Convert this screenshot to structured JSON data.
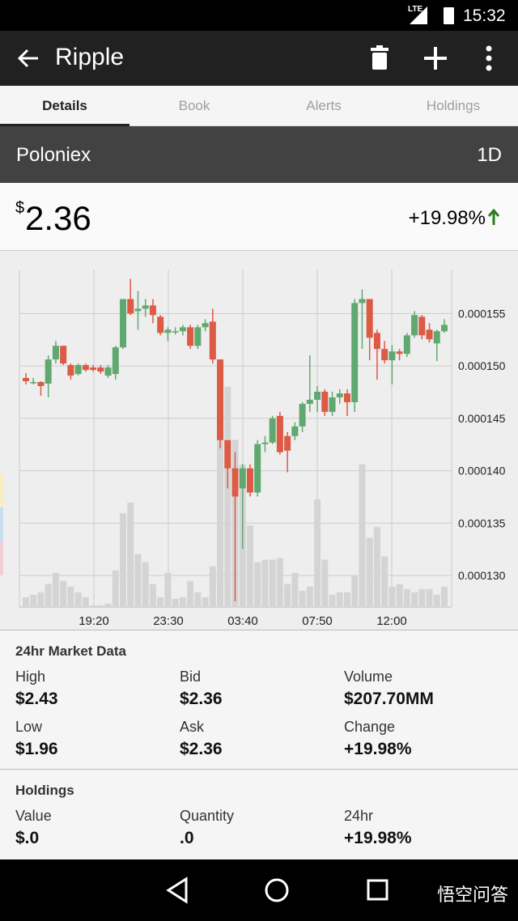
{
  "status_bar": {
    "network": "LTE",
    "time": "15:32"
  },
  "toolbar": {
    "title": "Ripple"
  },
  "tabs": [
    "Details",
    "Book",
    "Alerts",
    "Holdings"
  ],
  "exchange": {
    "name": "Poloniex",
    "interval": "1D"
  },
  "price": {
    "currency": "$",
    "value": "2.36",
    "change": "+19.98%"
  },
  "chart_data": {
    "type": "candlestick",
    "x_labels": [
      "19:20",
      "23:30",
      "03:40",
      "07:50",
      "12:00"
    ],
    "open": [
      0.00014885,
      0.00014846,
      0.00014846,
      0.00014831,
      0.00015062,
      0.00015192,
      0.00015008,
      0.00014923,
      0.00015008,
      0.00014985,
      0.00014985,
      0.00014908,
      0.00014923,
      0.00015177,
      0.00015638,
      0.00015523,
      0.00015546,
      0.00015577,
      0.00015469,
      0.00015315,
      0.00015331,
      0.00015331,
      0.00015369,
      0.00015192,
      0.00015369,
      0.00015423,
      0.00015062,
      0.00014292,
      0.00014023,
      0.00013831,
      0.00014023,
      0.00013792,
      0.00014254,
      0.00014269,
      0.00014523,
      0.00014331,
      0.00014331,
      0.00014423,
      0.00014638,
      0.00014677,
      0.00014754,
      0.00014562,
      0.000147,
      0.00014738,
      0.00014654,
      0.000156,
      0.00015638,
      0.00015315,
      0.00015162,
      0.00015054,
      0.00015138,
      0.00015115,
      0.00015292,
      0.00015469,
      0.00015346,
      0.00015215,
      0.00015331
    ],
    "high": [
      0.00014931,
      0.00014885,
      0.00014854,
      0.000151,
      0.00015238,
      0.00015192,
      0.00015023,
      0.00015023,
      0.00015023,
      0.00015008,
      0.00015008,
      0.00015008,
      0.00015192,
      0.00015638,
      0.00015831,
      0.00015715,
      0.00015638,
      0.00015638,
      0.00015485,
      0.00015369,
      0.00015369,
      0.00015392,
      0.00015392,
      0.00015392,
      0.00015446,
      0.00015546,
      0.00015062,
      0.00014292,
      0.00014177,
      0.00014062,
      0.00014062,
      0.00014292,
      0.00014331,
      0.00014523,
      0.00014562,
      0.00014369,
      0.00014462,
      0.00014654,
      0.000151,
      0.00014808,
      0.00014777,
      0.00014754,
      0.00014777,
      0.00014777,
      0.00015638,
      0.00015731,
      0.00015638,
      0.00015346,
      0.00015238,
      0.000152,
      0.00015162,
      0.00015315,
      0.00015523,
      0.00015485,
      0.00015408,
      0.00015346,
      0.00015446
    ],
    "low": [
      0.00014823,
      0.00014823,
      0.00014715,
      0.000147,
      0.00015023,
      0.00015008,
      0.00014869,
      0.00014908,
      0.00014946,
      0.00014946,
      0.00014923,
      0.00014885,
      0.00014869,
      0.00015162,
      0.00015485,
      0.00015346,
      0.00015469,
      0.00015408,
      0.00015292,
      0.00015238,
      0.000153,
      0.00015292,
      0.00015162,
      0.00015162,
      0.00015331,
      0.00015023,
      0.00014215,
      0.00013831,
      0.00012754,
      0.00013254,
      0.00013754,
      0.00013754,
      0.00014177,
      0.00014254,
      0.00014154,
      0.00013985,
      0.00014292,
      0.00014369,
      0.00014562,
      0.00014562,
      0.00014523,
      0.00014523,
      0.00014638,
      0.00014523,
      0.00014562,
      0.00015162,
      0.00015054,
      0.00014869,
      0.00015023,
      0.00014823,
      0.00015054,
      0.00015085,
      0.00015269,
      0.00015254,
      0.00015223,
      0.00015046,
      0.00015315
    ],
    "close": [
      0.00014854,
      0.00014846,
      0.00014808,
      0.00015062,
      0.00015192,
      0.00015023,
      0.00014908,
      0.00015008,
      0.00014962,
      0.00014962,
      0.00014946,
      0.00014985,
      0.00015177,
      0.00015638,
      0.000155,
      0.00015546,
      0.00015577,
      0.00015485,
      0.00015315,
      0.00015346,
      0.00015331,
      0.00015369,
      0.00015192,
      0.00015369,
      0.00015408,
      0.00015062,
      0.00014292,
      0.00014023,
      0.00013754,
      0.00014023,
      0.00013792,
      0.00014254,
      0.00014269,
      0.000145,
      0.00014177,
      0.00014192,
      0.00014423,
      0.00014638,
      0.00014677,
      0.00014754,
      0.00014562,
      0.000147,
      0.00014738,
      0.00014654,
      0.000156,
      0.00015638,
      0.00015269,
      0.00015162,
      0.00015054,
      0.00015138,
      0.00015115,
      0.00015292,
      0.00015485,
      0.00015292,
      0.00015254,
      0.00015331,
      0.00015392
    ],
    "volume": [
      12,
      15,
      18,
      28,
      42,
      32,
      25,
      18,
      12,
      2,
      2,
      4,
      45,
      115,
      128,
      65,
      55,
      28,
      12,
      42,
      10,
      12,
      32,
      18,
      12,
      50,
      235,
      270,
      205,
      175,
      100,
      55,
      58,
      58,
      60,
      28,
      42,
      20,
      25,
      132,
      58,
      15,
      18,
      18,
      38,
      175,
      85,
      98,
      62,
      25,
      28,
      22,
      18,
      22,
      22,
      15,
      25
    ],
    "up_color": "#5fa971",
    "down_color": "#dd5a45",
    "volume_color": "#d4d4d4",
    "ylim": [
      0.000127,
      0.0001592
    ],
    "yticks": [
      0.000155,
      {
        "value": 0.00015,
        "label": "0.000150"
      },
      0.000145,
      {
        "value": 0.00014,
        "label": "0.000140"
      },
      0.000135,
      {
        "value": 0.00013,
        "label": "0.000130"
      }
    ],
    "grid": true
  },
  "market_data": {
    "title": "24hr Market Data",
    "items": [
      {
        "label": "High",
        "value": "$2.43"
      },
      {
        "label": "Bid",
        "value": "$2.36"
      },
      {
        "label": "Volume",
        "value": "$207.70MM"
      },
      {
        "label": "Low",
        "value": "$1.96"
      },
      {
        "label": "Ask",
        "value": "$2.36"
      },
      {
        "label": "Change",
        "value": "+19.98%"
      }
    ]
  },
  "holdings": {
    "title": "Holdings",
    "items": [
      {
        "label": "Value",
        "value": "$.0"
      },
      {
        "label": "Quantity",
        "value": ".0"
      },
      {
        "label": "24hr",
        "value": "+19.98%"
      }
    ]
  },
  "watermark": "悟空问答"
}
